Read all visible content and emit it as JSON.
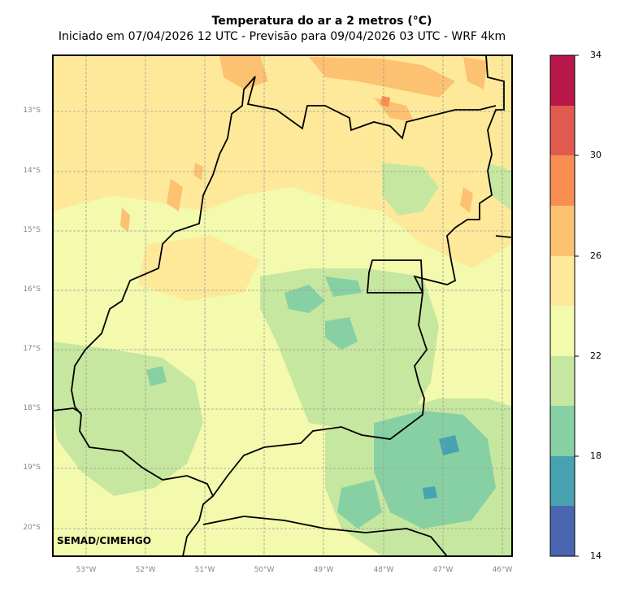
{
  "title": {
    "line1": "Temperatura do ar a 2 metros (°C)",
    "line2": "Iniciado em 07/04/2026 12 UTC - Previsão para 09/04/2026 03 UTC - WRF 4km"
  },
  "map": {
    "lat_labels": [
      "13°S",
      "14°S",
      "15°S",
      "16°S",
      "17°S",
      "18°S",
      "19°S",
      "20°S"
    ],
    "lon_labels": [
      "53°W",
      "52°W",
      "51°W",
      "50°W",
      "49°W",
      "48°W",
      "47°W",
      "46°W"
    ],
    "credit": "SEMAD/CIMEHGO"
  },
  "colorbar": {
    "ticks": [
      "34",
      "30",
      "26",
      "22",
      "18",
      "14"
    ],
    "colors": [
      "#b8174a",
      "#e05a4f",
      "#f98e52",
      "#fdc172",
      "#fee99a",
      "#f3f9ad",
      "#c6e79f",
      "#87d0a4",
      "#47a3b1",
      "#4a66b0"
    ]
  },
  "colors": {
    "frame": "#000000",
    "grid": "#9a9a9a",
    "label": "#888888"
  }
}
